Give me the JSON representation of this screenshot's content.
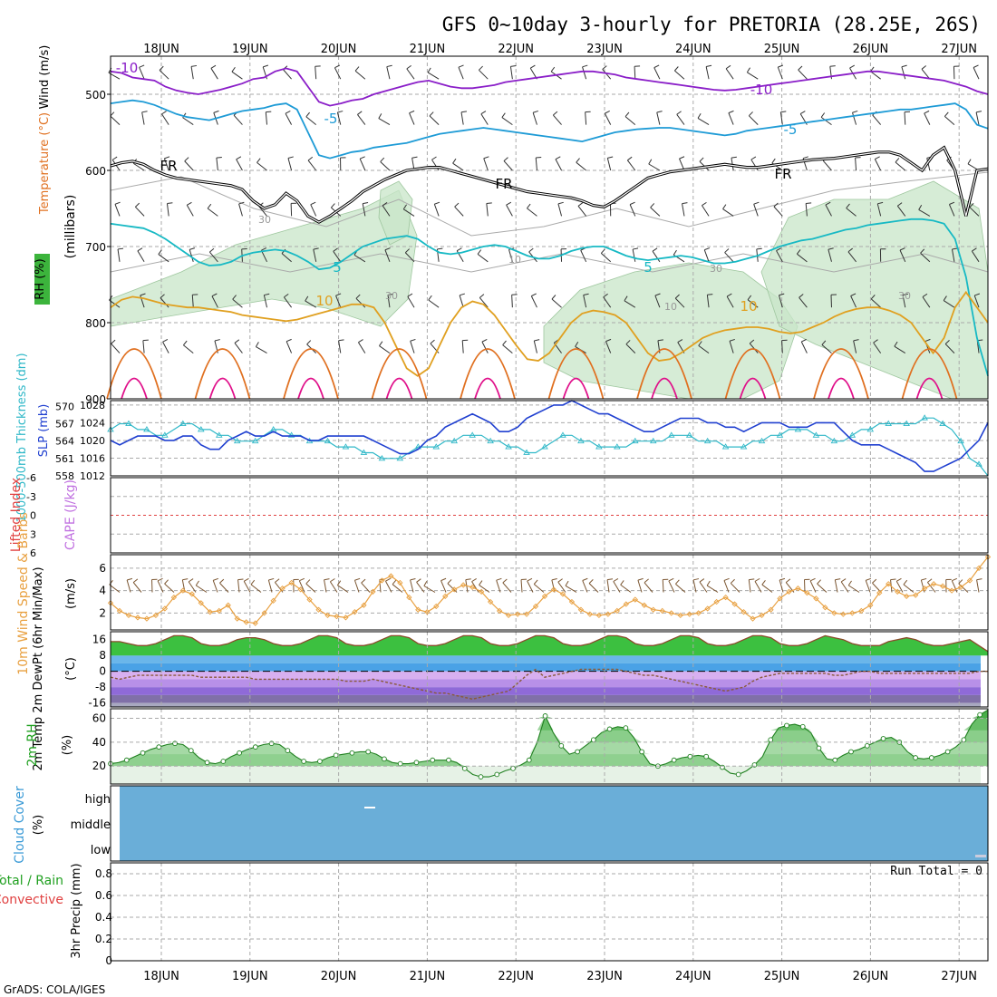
{
  "title": "GFS 0~10day 3-hourly for PRETORIA (28.25E, 26S)",
  "credit": "GrADS: COLA/IGES",
  "colors": {
    "temp_cold": "#8a1ec8",
    "temp_cool": "#1e9bd6",
    "temp_mild": "#17b9c4",
    "temp_warm": "#e0a020",
    "temp_hot": "#e07020",
    "temp_hotter": "#e0108a",
    "rh_fill": "#c8e6c8",
    "slp_line": "#2040d0",
    "thickness_line": "#30b8c8",
    "wind_speed_line": "#e8a040",
    "cloud_fill": "#6aaed8",
    "rh2m_line": "#208020"
  },
  "chart_data": [
    {
      "id": "upper_air",
      "type": "contour",
      "x_labels": [
        "18JUN",
        "19JUN",
        "20JUN",
        "21JUN",
        "22JUN",
        "23JUN",
        "24JUN",
        "25JUN",
        "26JUN",
        "27JUN"
      ],
      "ylabel_parts": [
        "RH (%)",
        "Temperature (°C)",
        "Wind (m/s)"
      ],
      "ylabel_units": "(millibars)",
      "y_ticks": [
        500,
        600,
        700,
        800,
        900
      ],
      "ylim": [
        450,
        900
      ],
      "contour_labels": [
        "-10",
        "-10",
        "-5",
        "-5",
        "FR",
        "FR",
        "FR",
        "10",
        "30",
        "5",
        "5",
        "10",
        "30",
        "10",
        "10",
        "30",
        "30"
      ],
      "contours": [
        {
          "level": "-10",
          "color": "#8a1ec8",
          "values": [
            470,
            472,
            478,
            480,
            482,
            490,
            495,
            498,
            500,
            497,
            494,
            490,
            486,
            480,
            478,
            470,
            466,
            470,
            490,
            510,
            515,
            512,
            508,
            506,
            500,
            496,
            492,
            488,
            484,
            482,
            486,
            490,
            492,
            492,
            490,
            488,
            484,
            482,
            480,
            478,
            476,
            474,
            472,
            470,
            470,
            472,
            474,
            478,
            480,
            482,
            484,
            486,
            488,
            490,
            492,
            494,
            495,
            494,
            492,
            490,
            488,
            486,
            484,
            482,
            480,
            478,
            476,
            474,
            472,
            470,
            470,
            472,
            474,
            476,
            478,
            480,
            482,
            486,
            490,
            496,
            500
          ]
        },
        {
          "level": "-5",
          "color": "#1e9bd6",
          "values": [
            512,
            510,
            508,
            510,
            514,
            520,
            526,
            530,
            532,
            534,
            530,
            526,
            522,
            520,
            518,
            514,
            512,
            520,
            550,
            580,
            584,
            580,
            576,
            574,
            570,
            568,
            566,
            564,
            560,
            556,
            552,
            550,
            548,
            546,
            544,
            546,
            548,
            550,
            552,
            554,
            556,
            558,
            560,
            562,
            558,
            554,
            550,
            548,
            546,
            545,
            544,
            544,
            546,
            548,
            550,
            552,
            554,
            552,
            548,
            546,
            544,
            542,
            540,
            538,
            536,
            534,
            532,
            530,
            528,
            526,
            524,
            522,
            520,
            520,
            518,
            516,
            514,
            512,
            520,
            540,
            545
          ]
        },
        {
          "level": "FR",
          "color": "#000000",
          "values": [
            594,
            590,
            588,
            592,
            600,
            606,
            610,
            612,
            614,
            616,
            618,
            620,
            625,
            640,
            650,
            645,
            630,
            640,
            660,
            668,
            660,
            650,
            640,
            628,
            620,
            612,
            606,
            600,
            598,
            596,
            596,
            600,
            604,
            608,
            612,
            616,
            620,
            624,
            628,
            630,
            632,
            634,
            636,
            640,
            646,
            648,
            640,
            630,
            620,
            610,
            606,
            602,
            600,
            598,
            596,
            594,
            592,
            594,
            596,
            596,
            594,
            592,
            590,
            588,
            586,
            585,
            584,
            582,
            580,
            578,
            576,
            576,
            580,
            590,
            600,
            580,
            570,
            600,
            660,
            600,
            598
          ]
        },
        {
          "level": "5",
          "color": "#17b9c4",
          "values": [
            670,
            672,
            674,
            676,
            682,
            690,
            700,
            710,
            720,
            725,
            724,
            720,
            712,
            708,
            706,
            704,
            706,
            712,
            720,
            730,
            728,
            720,
            710,
            700,
            695,
            690,
            688,
            686,
            690,
            700,
            708,
            710,
            708,
            704,
            700,
            698,
            700,
            706,
            712,
            716,
            716,
            712,
            706,
            702,
            700,
            700,
            706,
            712,
            716,
            718,
            716,
            714,
            712,
            714,
            718,
            722,
            722,
            720,
            716,
            712,
            706,
            700,
            696,
            692,
            690,
            686,
            682,
            678,
            676,
            672,
            670,
            668,
            666,
            664,
            664,
            666,
            670,
            690,
            740,
            820,
            870
          ]
        },
        {
          "level": "10",
          "color": "#e0a020",
          "values": [
            780,
            770,
            766,
            768,
            772,
            776,
            778,
            780,
            780,
            782,
            784,
            786,
            790,
            792,
            794,
            796,
            798,
            796,
            792,
            788,
            784,
            780,
            776,
            776,
            780,
            800,
            830,
            860,
            870,
            860,
            830,
            800,
            780,
            772,
            776,
            790,
            810,
            830,
            848,
            850,
            840,
            820,
            800,
            788,
            784,
            786,
            790,
            800,
            820,
            840,
            850,
            848,
            840,
            830,
            820,
            814,
            810,
            808,
            806,
            806,
            808,
            812,
            814,
            812,
            806,
            800,
            792,
            786,
            782,
            780,
            780,
            784,
            790,
            800,
            820,
            840,
            820,
            780,
            760,
            780,
            800
          ]
        }
      ]
    },
    {
      "id": "slp_thickness",
      "type": "line",
      "ylabel_left": "1000-500mb Thickness (dm)",
      "ylabel_right": "SLP (mb)",
      "left_ticks": [
        558,
        561,
        564,
        567,
        570
      ],
      "right_ticks": [
        1012,
        1016,
        1020,
        1024,
        1028
      ],
      "ylim_left": [
        558,
        571
      ],
      "ylim_right": [
        1012,
        1029
      ],
      "series": [
        {
          "values": [
            1020,
            1019,
            1020,
            1021,
            1021,
            1021,
            1020,
            1020,
            1021,
            1021,
            1019,
            1018,
            1018,
            1020,
            1021,
            1022,
            1021,
            1021,
            1022,
            1021,
            1021,
            1021,
            1020,
            1020,
            1021,
            1021,
            1021,
            1021,
            1021,
            1020,
            1019,
            1018,
            1017,
            1017,
            1018,
            1020,
            1021,
            1023,
            1024,
            1025,
            1026,
            1025,
            1024,
            1022,
            1022,
            1023,
            1025,
            1026,
            1027,
            1028,
            1028,
            1029,
            1028,
            1027,
            1026,
            1026,
            1025,
            1024,
            1023,
            1022,
            1022,
            1023,
            1024,
            1025,
            1025,
            1025,
            1024,
            1024,
            1023,
            1023,
            1022,
            1023,
            1024,
            1024,
            1024,
            1023,
            1023,
            1023,
            1024,
            1024,
            1024,
            1022,
            1020,
            1019,
            1019,
            1019,
            1018,
            1017,
            1016,
            1015,
            1013,
            1013,
            1014,
            1015,
            1016,
            1018,
            1020,
            1024
          ]
        },
        {
          "values": [
            566,
            567,
            567,
            566,
            566,
            565,
            565,
            566,
            567,
            567,
            566,
            566,
            565,
            565,
            564,
            564,
            564,
            565,
            566,
            566,
            565,
            565,
            564,
            564,
            564,
            563,
            563,
            563,
            562,
            562,
            561,
            561,
            561,
            562,
            563,
            563,
            563,
            564,
            564,
            565,
            565,
            565,
            564,
            564,
            563,
            563,
            562,
            562,
            563,
            564,
            565,
            565,
            564,
            564,
            563,
            563,
            563,
            563,
            564,
            564,
            564,
            564,
            565,
            565,
            565,
            564,
            564,
            564,
            563,
            563,
            563,
            564,
            564,
            565,
            565,
            566,
            566,
            566,
            565,
            565,
            564,
            564,
            565,
            566,
            566,
            567,
            567,
            567,
            567,
            567,
            568,
            568,
            567,
            566,
            564,
            561,
            560,
            558
          ]
        }
      ]
    },
    {
      "id": "cape_li",
      "type": "line",
      "ylabel_left": "Lifted Index",
      "ylabel_right": "CAPE (J/kg)",
      "ticks": [
        "-6",
        "-3",
        "0",
        "3",
        "6"
      ],
      "ylim": [
        -6,
        6
      ],
      "values": []
    },
    {
      "id": "wind10m",
      "type": "line",
      "ylabel": "10m Wind Speed & Barbs",
      "units": "(m/s)",
      "ticks": [
        2,
        4,
        6
      ],
      "ylim": [
        0.5,
        7.2
      ],
      "values": [
        2.9,
        2.2,
        1.8,
        1.6,
        1.5,
        1.8,
        2.4,
        3.4,
        4.0,
        3.7,
        2.9,
        2.1,
        2.2,
        2.7,
        1.5,
        1.2,
        1.1,
        2.0,
        3.1,
        4.2,
        4.7,
        4.1,
        3.2,
        2.3,
        1.8,
        1.7,
        1.6,
        2.1,
        2.7,
        3.9,
        4.9,
        5.3,
        4.7,
        3.4,
        2.3,
        2.1,
        2.6,
        3.5,
        4.1,
        4.5,
        4.3,
        3.9,
        3.0,
        2.2,
        1.8,
        1.9,
        1.9,
        2.6,
        3.5,
        4.1,
        3.7,
        3.0,
        2.3,
        1.9,
        1.8,
        1.9,
        2.2,
        2.8,
        3.2,
        2.7,
        2.3,
        2.2,
        2.0,
        1.8,
        1.9,
        2.0,
        2.4,
        3.0,
        3.4,
        2.8,
        2.1,
        1.5,
        1.8,
        2.3,
        3.3,
        3.9,
        4.2,
        3.8,
        3.3,
        2.5,
        2.0,
        1.9,
        2.0,
        2.2,
        2.7,
        3.8,
        4.6,
        3.9,
        3.5,
        3.6,
        4.2,
        4.6,
        4.4,
        4.0,
        4.3,
        4.9,
        6.0,
        7.0
      ]
    },
    {
      "id": "temp2m",
      "type": "line",
      "ylabel": "2m Temp 2m DewPt (6hr Min/Max)",
      "units": "(°C)",
      "ticks": [
        "16",
        "8",
        "0",
        "-8",
        "-16"
      ],
      "ylim": [
        -18,
        20
      ],
      "temp": [
        15,
        15,
        14,
        13,
        13,
        14,
        16,
        18,
        18,
        17,
        14,
        13,
        13,
        14,
        16,
        17,
        17,
        16,
        14,
        13,
        13,
        14,
        16,
        18,
        18,
        17,
        14,
        13,
        13,
        14,
        16,
        18,
        18,
        17,
        14,
        13,
        13,
        14,
        16,
        18,
        18,
        17,
        14,
        13,
        13,
        14,
        16,
        18,
        18,
        17,
        14,
        13,
        13,
        14,
        16,
        18,
        18,
        17,
        14,
        13,
        13,
        14,
        16,
        18,
        18,
        17,
        14,
        13,
        13,
        14,
        16,
        18,
        18,
        17,
        14,
        13,
        13,
        14,
        16,
        18,
        17,
        16,
        14,
        13,
        13,
        13,
        15,
        16,
        17,
        16,
        14,
        13,
        13,
        14,
        15,
        16,
        13,
        10
      ],
      "dewpt": [
        -3,
        -4,
        -3,
        -2,
        -2,
        -2,
        -2,
        -2,
        -2,
        -2,
        -3,
        -3,
        -3,
        -3,
        -3,
        -3,
        -4,
        -4,
        -4,
        -4,
        -4,
        -4,
        -4,
        -4,
        -4,
        -4,
        -5,
        -5,
        -5,
        -4,
        -5,
        -6,
        -7,
        -8,
        -9,
        -10,
        -11,
        -11,
        -12,
        -13,
        -14,
        -13,
        -12,
        -11,
        -10,
        -6,
        -2,
        1,
        -3,
        -2,
        -1,
        0,
        1,
        1,
        1,
        1,
        1,
        0,
        -1,
        -2,
        -2,
        -3,
        -4,
        -5,
        -6,
        -7,
        -8,
        -9,
        -10,
        -9,
        -8,
        -5,
        -3,
        -2,
        -1,
        -1,
        -1,
        -1,
        -1,
        -1,
        -2,
        -2,
        -1,
        0,
        0,
        -1,
        -1,
        -1,
        -1,
        -1,
        -1,
        -1,
        -1,
        -1,
        -1,
        -1,
        0,
        0
      ]
    },
    {
      "id": "rh2m",
      "type": "area",
      "ylabel": "2m RH",
      "units": "(%)",
      "ticks": [
        20,
        40,
        60
      ],
      "ylim": [
        5,
        68
      ],
      "values": [
        22,
        23,
        25,
        28,
        31,
        34,
        36,
        38,
        39,
        38,
        33,
        27,
        23,
        22,
        24,
        28,
        31,
        34,
        36,
        38,
        39,
        38,
        33,
        28,
        24,
        23,
        24,
        27,
        29,
        30,
        31,
        32,
        32,
        30,
        26,
        23,
        22,
        22,
        23,
        24,
        25,
        25,
        25,
        23,
        18,
        13,
        11,
        11,
        13,
        16,
        18,
        21,
        25,
        40,
        62,
        48,
        37,
        30,
        32,
        37,
        42,
        48,
        51,
        53,
        52,
        44,
        32,
        22,
        20,
        22,
        25,
        27,
        28,
        29,
        28,
        24,
        19,
        14,
        13,
        16,
        21,
        28,
        42,
        52,
        54,
        55,
        53,
        48,
        35,
        26,
        25,
        29,
        32,
        34,
        37,
        40,
        43,
        44,
        40,
        32,
        27,
        26,
        27,
        29,
        32,
        36,
        42,
        55,
        63,
        67
      ]
    },
    {
      "id": "cloud",
      "type": "heatmap",
      "ylabel": "Cloud Cover",
      "units": "(%)",
      "levels": [
        "high",
        "middle",
        "low"
      ]
    },
    {
      "id": "precip",
      "type": "bar",
      "ylabel_parts": [
        "Total / Rain",
        "Convective",
        "3hr Precip (mm)"
      ],
      "ticks": [
        "0",
        "0.2",
        "0.4",
        "0.6",
        "0.8"
      ],
      "ylim": [
        0,
        0.9
      ],
      "run_total": "Run Total = 0",
      "values": []
    }
  ]
}
